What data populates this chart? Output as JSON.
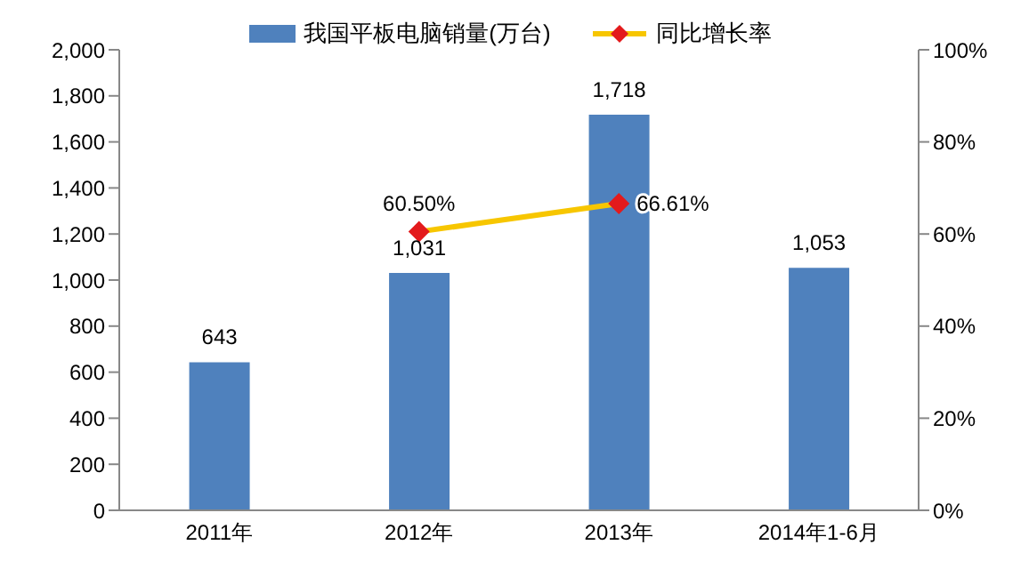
{
  "chart_data": {
    "type": "bar",
    "categories": [
      "2011年",
      "2012年",
      "2013年",
      "2014年1-6月"
    ],
    "series": [
      {
        "name": "我国平板电脑销量(万台)",
        "color": "#4f81bd",
        "values": [
          643,
          1031,
          1718,
          1053
        ],
        "value_labels": [
          "643",
          "1,031",
          "1,718",
          "1,053"
        ]
      },
      {
        "name": "同比增长率",
        "type": "line",
        "axis": "y2",
        "color": "#f7c600",
        "values": [
          null,
          60.5,
          66.61,
          null
        ],
        "value_labels": [
          null,
          "60.50%",
          "66.61%",
          null
        ]
      }
    ],
    "ylim": [
      0,
      2000
    ],
    "yticks": [
      0,
      {
        "value": 200,
        "label": "200"
      },
      {
        "value": 400,
        "label": "400"
      },
      {
        "value": 600,
        "label": "600"
      },
      {
        "value": 800,
        "label": "800"
      },
      {
        "value": 1000,
        "label": "1,000"
      },
      {
        "value": 1200,
        "label": "1,200"
      },
      {
        "value": 1400,
        "label": "1,400"
      },
      {
        "value": 1600,
        "label": "1,600"
      },
      {
        "value": 1800,
        "label": "1,800"
      },
      {
        "value": 2000,
        "label": "2,000"
      }
    ],
    "y2lim": [
      0,
      100
    ],
    "y2ticks": [
      {
        "value": 0,
        "label": "0%"
      },
      {
        "value": 20,
        "label": "20%"
      },
      {
        "value": 40,
        "label": "40%"
      },
      {
        "value": 60,
        "label": "60%"
      },
      {
        "value": 80,
        "label": "80%"
      },
      {
        "value": 100,
        "label": "100%"
      }
    ],
    "legend": "top",
    "grid": false,
    "marker": "diamond"
  }
}
